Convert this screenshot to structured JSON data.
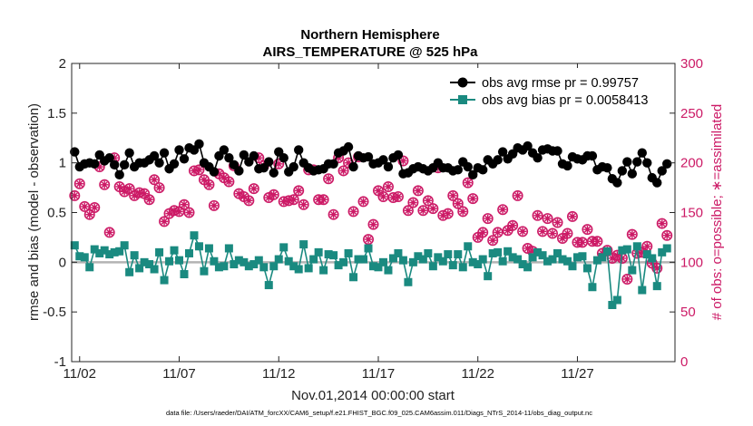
{
  "chart_data": {
    "type": "line",
    "title": "Northern Hemisphere",
    "subtitle": "AIRS_TEMPERATURE @ 525 hPa",
    "xlabel": "Nov.01,2014 00:00:00 start",
    "ylabel": "rmse and bias (model - observation)",
    "ylabel_right": "# of obs: o=possible; ∗=assimilated",
    "ylim": [
      -1,
      2
    ],
    "ylim_right": [
      0,
      300
    ],
    "x_range": [
      0.6,
      30.9
    ],
    "x_ticks": [
      1,
      6,
      11,
      16,
      21,
      26
    ],
    "x_tick_labels": [
      "11/02",
      "11/07",
      "11/12",
      "11/17",
      "11/22",
      "11/27"
    ],
    "y_ticks": [
      -1,
      -0.5,
      0,
      0.5,
      1,
      1.5,
      2
    ],
    "y_tick_labels": [
      "-1",
      "-0.5",
      "0",
      "0.5",
      "1",
      "1.5",
      "2"
    ],
    "y_ticks_right": [
      0,
      50,
      100,
      150,
      200,
      250,
      300
    ],
    "y_tick_labels_right": [
      "0",
      "50",
      "100",
      "150",
      "200",
      "250",
      "300"
    ],
    "grid": false,
    "legend_position": "top-right",
    "footnote": "data file: /Users/raeder/DAI/ATM_forcXX/CAM6_setup/f.e21.FHIST_BGC.f09_025.CAM6assim.011/Diags_NTrS_2014-11/obs_diag_output.nc",
    "colors": {
      "rmse": "#000000",
      "bias": "#1a8a80",
      "obs": "#cc1a66",
      "zero_line": "#b3b3b3"
    },
    "series": [
      {
        "name": "obs avg rmse pr = 0.99757",
        "x": [
          0.75,
          1.0,
          1.25,
          1.5,
          1.75,
          2.0,
          2.25,
          2.5,
          2.75,
          3.0,
          3.25,
          3.5,
          3.75,
          4.0,
          4.25,
          4.5,
          4.75,
          5.0,
          5.25,
          5.5,
          5.75,
          6.0,
          6.25,
          6.5,
          6.75,
          7.0,
          7.25,
          7.5,
          7.75,
          8.0,
          8.25,
          8.5,
          8.75,
          9.0,
          9.25,
          9.5,
          9.75,
          10.0,
          10.25,
          10.5,
          10.75,
          11.0,
          11.25,
          11.5,
          11.75,
          12.0,
          12.25,
          12.5,
          12.75,
          13.0,
          13.25,
          13.5,
          13.75,
          14.0,
          14.25,
          14.5,
          14.75,
          15.0,
          15.25,
          15.5,
          15.75,
          16.0,
          16.25,
          16.5,
          16.75,
          17.0,
          17.25,
          17.5,
          17.75,
          18.0,
          18.25,
          18.5,
          18.75,
          19.0,
          19.25,
          19.5,
          19.75,
          20.0,
          20.25,
          20.5,
          20.75,
          21.0,
          21.25,
          21.5,
          21.75,
          22.0,
          22.25,
          22.5,
          22.75,
          23.0,
          23.25,
          23.5,
          23.75,
          24.0,
          24.25,
          24.5,
          24.75,
          25.0,
          25.25,
          25.5,
          25.75,
          26.0,
          26.25,
          26.5,
          26.75,
          27.0,
          27.25,
          27.5,
          27.75,
          28.0,
          28.25,
          28.5,
          28.75,
          29.0,
          29.25,
          29.5,
          29.75,
          30.0,
          30.25,
          30.5
        ],
        "values": [
          1.11,
          0.96,
          0.99,
          1.0,
          0.99,
          1.08,
          1.02,
          1.05,
          0.98,
          0.88,
          0.98,
          1.1,
          0.96,
          1.0,
          1.0,
          1.03,
          1.07,
          1.0,
          1.1,
          0.94,
          0.99,
          1.13,
          1.04,
          1.15,
          1.13,
          1.19,
          1.0,
          0.96,
          0.91,
          1.07,
          1.13,
          1.05,
          0.98,
          0.92,
          1.08,
          1.01,
          1.07,
          0.94,
          0.95,
          1.01,
          0.9,
          1.11,
          1.05,
          0.91,
          0.96,
          1.13,
          1.0,
          0.95,
          0.92,
          0.93,
          0.94,
          0.99,
          0.99,
          1.1,
          1.12,
          1.16,
          0.96,
          1.07,
          1.05,
          1.06,
          0.99,
          1.0,
          1.03,
          0.96,
          1.05,
          1.08,
          0.89,
          0.9,
          0.94,
          0.96,
          0.94,
          0.92,
          0.95,
          1.0,
          0.95,
          0.95,
          0.92,
          0.93,
          1.01,
          0.96,
          0.88,
          0.95,
          0.93,
          1.03,
          0.99,
          1.03,
          1.11,
          1.04,
          1.09,
          1.15,
          1.13,
          1.17,
          1.1,
          1.05,
          1.13,
          1.14,
          1.12,
          1.12,
          0.99,
          0.97,
          1.06,
          1.04,
          1.03,
          1.07,
          1.07,
          0.93,
          0.96,
          0.95,
          0.84,
          0.8,
          0.92,
          1.01,
          0.89,
          1.01,
          1.1,
          1.0,
          0.85,
          0.8,
          0.92,
          0.99
        ]
      },
      {
        "name": "obs avg bias pr = 0.0058413",
        "x": [
          0.75,
          1.0,
          1.25,
          1.5,
          1.75,
          2.0,
          2.25,
          2.5,
          2.75,
          3.0,
          3.25,
          3.5,
          3.75,
          4.0,
          4.25,
          4.5,
          4.75,
          5.0,
          5.25,
          5.5,
          5.75,
          6.0,
          6.25,
          6.5,
          6.75,
          7.0,
          7.25,
          7.5,
          7.75,
          8.0,
          8.25,
          8.5,
          8.75,
          9.0,
          9.25,
          9.5,
          9.75,
          10.0,
          10.25,
          10.5,
          10.75,
          11.0,
          11.25,
          11.5,
          11.75,
          12.0,
          12.25,
          12.5,
          12.75,
          13.0,
          13.25,
          13.5,
          13.75,
          14.0,
          14.25,
          14.5,
          14.75,
          15.0,
          15.25,
          15.5,
          15.75,
          16.0,
          16.25,
          16.5,
          16.75,
          17.0,
          17.25,
          17.5,
          17.75,
          18.0,
          18.25,
          18.5,
          18.75,
          19.0,
          19.25,
          19.5,
          19.75,
          20.0,
          20.25,
          20.5,
          20.75,
          21.0,
          21.25,
          21.5,
          21.75,
          22.0,
          22.25,
          22.5,
          22.75,
          23.0,
          23.25,
          23.5,
          23.75,
          24.0,
          24.25,
          24.5,
          24.75,
          25.0,
          25.25,
          25.5,
          25.75,
          26.0,
          26.25,
          26.5,
          26.75,
          27.0,
          27.25,
          27.5,
          27.75,
          28.0,
          28.25,
          28.5,
          28.75,
          29.0,
          29.25,
          29.5,
          29.75,
          30.0,
          30.25,
          30.5
        ],
        "values": [
          0.17,
          0.06,
          0.05,
          -0.05,
          0.13,
          0.09,
          0.12,
          0.08,
          0.1,
          0.11,
          0.17,
          -0.1,
          0.07,
          -0.06,
          0.0,
          -0.02,
          -0.07,
          0.1,
          -0.18,
          0.01,
          0.12,
          0.02,
          -0.12,
          0.09,
          0.27,
          0.16,
          -0.09,
          0.14,
          0.01,
          -0.05,
          -0.04,
          0.14,
          -0.02,
          0.02,
          0.0,
          -0.04,
          -0.02,
          0.02,
          -0.05,
          -0.23,
          -0.04,
          0.03,
          0.15,
          0.01,
          -0.04,
          -0.07,
          0.18,
          -0.06,
          0.03,
          0.1,
          -0.08,
          0.08,
          0.07,
          -0.03,
          0.0,
          0.09,
          -0.15,
          0.03,
          0.03,
          0.14,
          -0.04,
          -0.05,
          0.0,
          -0.08,
          0.04,
          0.09,
          0.02,
          -0.2,
          0.0,
          0.06,
          0.03,
          0.09,
          -0.04,
          0.05,
          0.01,
          0.08,
          -0.03,
          0.08,
          -0.05,
          0.16,
          0.0,
          -0.02,
          0.03,
          -0.14,
          0.09,
          0.1,
          0.01,
          0.11,
          0.05,
          0.03,
          -0.02,
          -0.05,
          0.05,
          0.1,
          0.07,
          0.01,
          0.03,
          0.09,
          0.03,
          0.01,
          -0.04,
          0.05,
          0.06,
          -0.06,
          -0.25,
          0.02,
          0.05,
          0.11,
          -0.43,
          -0.38,
          0.12,
          0.13,
          -0.08,
          0.16,
          -0.28,
          0.08,
          0.04,
          -0.24,
          0.1,
          0.14
        ]
      },
      {
        "name": "# of obs possible",
        "x": [
          0.75,
          1.0,
          1.25,
          1.5,
          1.75,
          2.0,
          2.25,
          2.5,
          2.75,
          3.0,
          3.25,
          3.5,
          3.75,
          4.0,
          4.25,
          4.5,
          4.75,
          5.0,
          5.25,
          5.5,
          5.75,
          6.0,
          6.25,
          6.5,
          6.75,
          7.0,
          7.25,
          7.5,
          7.75,
          8.0,
          8.25,
          8.5,
          8.75,
          9.0,
          9.25,
          9.5,
          9.75,
          10.0,
          10.25,
          10.5,
          10.75,
          11.0,
          11.25,
          11.5,
          11.75,
          12.0,
          12.25,
          12.5,
          12.75,
          13.0,
          13.25,
          13.5,
          13.75,
          14.0,
          14.25,
          14.5,
          14.75,
          15.0,
          15.25,
          15.5,
          15.75,
          16.0,
          16.25,
          16.5,
          16.75,
          17.0,
          17.25,
          17.5,
          17.75,
          18.0,
          18.25,
          18.5,
          18.75,
          19.0,
          19.25,
          19.5,
          19.75,
          20.0,
          20.25,
          20.5,
          20.75,
          21.0,
          21.25,
          21.5,
          21.75,
          22.0,
          22.25,
          22.5,
          22.75,
          23.0,
          23.25,
          23.5,
          23.75,
          24.0,
          24.25,
          24.5,
          24.75,
          25.0,
          25.25,
          25.5,
          25.75,
          26.0,
          26.25,
          26.5,
          26.75,
          27.0,
          27.25,
          27.5,
          27.75,
          28.0,
          28.25,
          28.5,
          28.75,
          29.0,
          29.25,
          29.5,
          29.75,
          30.0,
          30.25,
          30.5
        ],
        "values": [
          167,
          179,
          156,
          148,
          155,
          196,
          178,
          130,
          205,
          176,
          171,
          174,
          167,
          170,
          169,
          163,
          183,
          175,
          141,
          149,
          152,
          151,
          158,
          150,
          192,
          193,
          183,
          178,
          157,
          189,
          185,
          181,
          197,
          169,
          166,
          162,
          174,
          205,
          197,
          165,
          168,
          199,
          161,
          162,
          163,
          172,
          158,
          193,
          193,
          163,
          163,
          184,
          148,
          205,
          192,
          200,
          151,
          206,
          161,
          123,
          138,
          172,
          166,
          176,
          165,
          166,
          202,
          152,
          160,
          172,
          152,
          162,
          154,
          195,
          147,
          149,
          167,
          159,
          151,
          180,
          164,
          125,
          130,
          144,
          122,
          130,
          153,
          132,
          137,
          167,
          131,
          114,
          111,
          147,
          131,
          144,
          129,
          140,
          124,
          129,
          146,
          120,
          120,
          133,
          121,
          121,
          109,
          112,
          104,
          107,
          104,
          83,
          128,
          109,
          110,
          116,
          99,
          94,
          139,
          127
        ]
      },
      {
        "name": "# of obs assimilated",
        "x": [
          0.75,
          1.0,
          1.25,
          1.5,
          1.75,
          2.0,
          2.25,
          2.5,
          2.75,
          3.0,
          3.25,
          3.5,
          3.75,
          4.0,
          4.25,
          4.5,
          4.75,
          5.0,
          5.25,
          5.5,
          5.75,
          6.0,
          6.25,
          6.5,
          6.75,
          7.0,
          7.25,
          7.5,
          7.75,
          8.0,
          8.25,
          8.5,
          8.75,
          9.0,
          9.25,
          9.5,
          9.75,
          10.0,
          10.25,
          10.5,
          10.75,
          11.0,
          11.25,
          11.5,
          11.75,
          12.0,
          12.25,
          12.5,
          12.75,
          13.0,
          13.25,
          13.5,
          13.75,
          14.0,
          14.25,
          14.5,
          14.75,
          15.0,
          15.25,
          15.5,
          15.75,
          16.0,
          16.25,
          16.5,
          16.75,
          17.0,
          17.25,
          17.5,
          17.75,
          18.0,
          18.25,
          18.5,
          18.75,
          19.0,
          19.25,
          19.5,
          19.75,
          20.0,
          20.25,
          20.5,
          20.75,
          21.0,
          21.25,
          21.5,
          21.75,
          22.0,
          22.25,
          22.5,
          22.75,
          23.0,
          23.25,
          23.5,
          23.75,
          24.0,
          24.25,
          24.5,
          24.75,
          25.0,
          25.25,
          25.5,
          25.75,
          26.0,
          26.25,
          26.5,
          26.75,
          27.0,
          27.25,
          27.5,
          27.75,
          28.0,
          28.25,
          28.5,
          28.75,
          29.0,
          29.25,
          29.5,
          29.75,
          30.0,
          30.25,
          30.5
        ],
        "values": [
          167,
          179,
          156,
          148,
          155,
          196,
          178,
          130,
          205,
          176,
          171,
          174,
          167,
          170,
          169,
          163,
          183,
          175,
          141,
          149,
          152,
          151,
          158,
          150,
          192,
          193,
          183,
          178,
          157,
          189,
          185,
          181,
          197,
          169,
          166,
          162,
          174,
          205,
          197,
          165,
          168,
          199,
          161,
          162,
          163,
          172,
          158,
          193,
          193,
          163,
          163,
          184,
          148,
          205,
          192,
          200,
          151,
          206,
          161,
          123,
          138,
          172,
          166,
          176,
          165,
          166,
          202,
          152,
          160,
          172,
          152,
          162,
          154,
          195,
          147,
          149,
          167,
          159,
          151,
          180,
          164,
          125,
          130,
          144,
          122,
          130,
          153,
          132,
          137,
          167,
          131,
          114,
          111,
          147,
          131,
          144,
          129,
          140,
          124,
          129,
          146,
          120,
          120,
          133,
          121,
          121,
          109,
          112,
          104,
          107,
          104,
          83,
          128,
          109,
          110,
          116,
          99,
          94,
          139,
          127
        ]
      }
    ]
  }
}
